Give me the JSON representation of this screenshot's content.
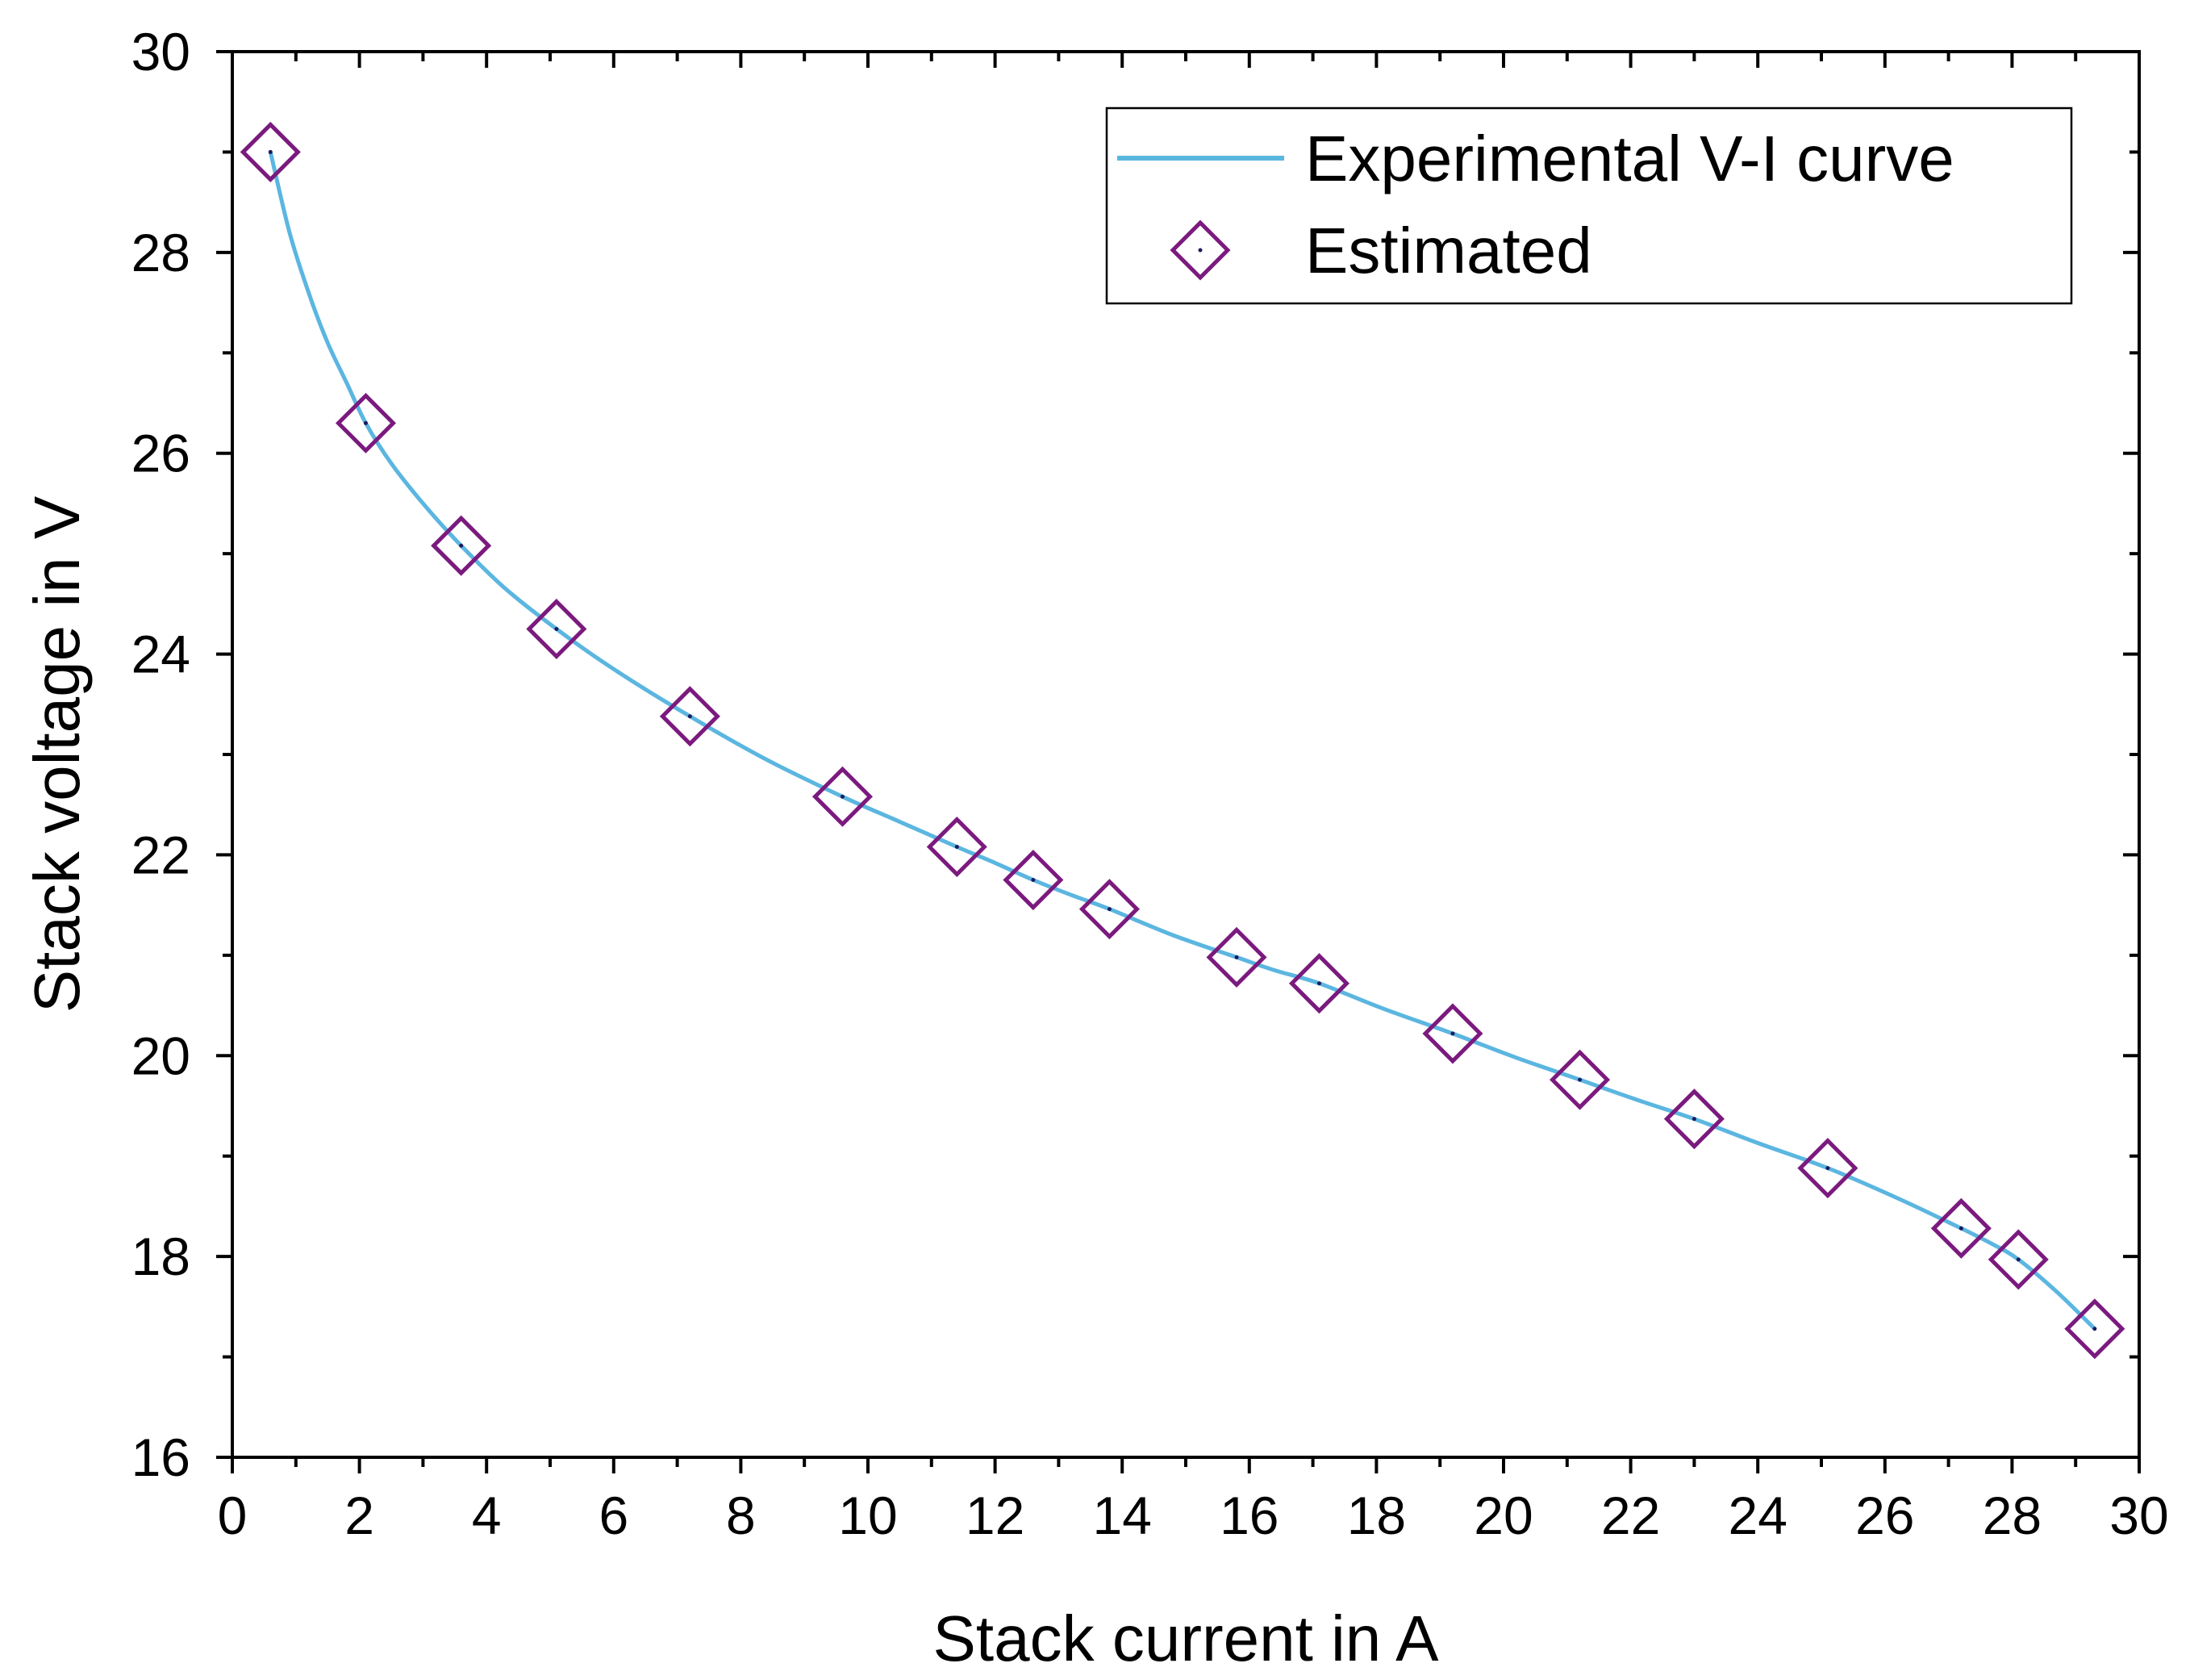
{
  "chart_data": {
    "type": "line",
    "title": "",
    "xlabel": "Stack current in A",
    "ylabel": "Stack voltage in V",
    "xlim": [
      0,
      30
    ],
    "ylim": [
      16,
      30
    ],
    "x_ticks": [
      0,
      2,
      4,
      6,
      8,
      10,
      12,
      14,
      16,
      18,
      20,
      22,
      24,
      26,
      28,
      30
    ],
    "y_ticks": [
      16,
      18,
      20,
      22,
      24,
      26,
      28,
      30
    ],
    "x_tick_labels": [
      "0",
      "2",
      "4",
      "6",
      "8",
      "10",
      "12",
      "14",
      "16",
      "18",
      "20",
      "22",
      "24",
      "26",
      "28",
      "30"
    ],
    "y_tick_labels": [
      "16",
      "18",
      "20",
      "22",
      "24",
      "26",
      "28",
      "30"
    ],
    "grid": false,
    "legend_position": "top-right",
    "series": [
      {
        "name": "Experimental V-I curve",
        "kind": "line",
        "color": "#5bb6e0",
        "x": [
          0.6,
          0.9,
          1.2,
          1.5,
          1.8,
          2.1,
          2.5,
          3.0,
          3.6,
          4.3,
          5.1,
          6.0,
          7.2,
          8.4,
          9.6,
          10.5,
          11.4,
          12.0,
          12.6,
          13.2,
          13.8,
          14.8,
          15.8,
          16.4,
          17.1,
          18.1,
          19.2,
          20.2,
          21.2,
          22.1,
          23.0,
          24.0,
          25.1,
          26.2,
          27.2,
          27.7,
          28.1,
          28.7,
          29.3
        ],
        "y": [
          29.0,
          28.2,
          27.6,
          27.1,
          26.7,
          26.3,
          25.9,
          25.5,
          25.08,
          24.65,
          24.25,
          23.85,
          23.38,
          22.95,
          22.58,
          22.33,
          22.08,
          21.92,
          21.75,
          21.6,
          21.46,
          21.2,
          20.98,
          20.85,
          20.72,
          20.47,
          20.22,
          19.98,
          19.76,
          19.56,
          19.37,
          19.13,
          18.88,
          18.58,
          18.28,
          18.12,
          17.97,
          17.65,
          17.28
        ]
      },
      {
        "name": "Estimated",
        "kind": "scatter",
        "marker": "diamond",
        "color": "#7b1a7e",
        "x": [
          0.6,
          2.1,
          3.6,
          5.1,
          7.2,
          9.6,
          11.4,
          12.6,
          13.8,
          15.8,
          17.1,
          19.2,
          21.2,
          23.0,
          25.1,
          27.2,
          28.1,
          29.3
        ],
        "y": [
          29.0,
          26.3,
          25.08,
          24.25,
          23.38,
          22.58,
          22.08,
          21.75,
          21.46,
          20.98,
          20.72,
          20.22,
          19.76,
          19.37,
          18.88,
          18.28,
          17.97,
          17.28
        ]
      }
    ]
  }
}
